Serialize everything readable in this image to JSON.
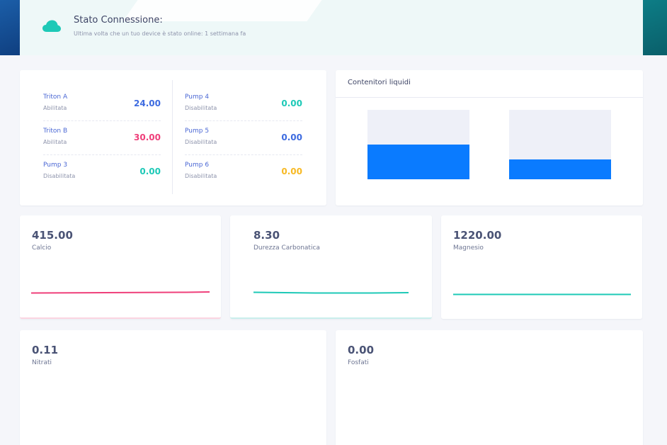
{
  "connection": {
    "title": "Stato Connessione:",
    "subtitle": "Ultima volta che un tuo device è stato online: 1 settimana fa",
    "icon": "cloud-icon",
    "icon_color": "#1ec9b7"
  },
  "pumps": [
    {
      "name": "Triton A",
      "status": "Abilitata",
      "value": "24.00",
      "color": "#3d6be0"
    },
    {
      "name": "Triton B",
      "status": "Abilitata",
      "value": "30.00",
      "color": "#ef3f7a"
    },
    {
      "name": "Pump 3",
      "status": "Disabilitata",
      "value": "0.00",
      "color": "#1ec9b7"
    },
    {
      "name": "Pump 4",
      "status": "Disabilitata",
      "value": "0.00",
      "color": "#1ec9b7"
    },
    {
      "name": "Pump 5",
      "status": "Disabilitata",
      "value": "0.00",
      "color": "#3d6be0"
    },
    {
      "name": "Pump 6",
      "status": "Disabilitata",
      "value": "0.00",
      "color": "#f7b924"
    }
  ],
  "liquids": {
    "title": "Contenitori liquidi",
    "fill_color": "#0a7bff",
    "tanks": [
      {
        "level_fraction": 0.5
      },
      {
        "level_fraction": 0.29
      }
    ]
  },
  "metrics": [
    {
      "value": "415.00",
      "label": "Calcio",
      "line_color": "#ef3f7a"
    },
    {
      "value": "8.30",
      "label": "Durezza Carbonatica",
      "line_color": "#1ec9b7"
    },
    {
      "value": "1220.00",
      "label": "Magnesio",
      "line_color": "#1ec9b7"
    }
  ],
  "bottom_metrics": [
    {
      "value": "0.11",
      "label": "Nitrati"
    },
    {
      "value": "0.00",
      "label": "Fosfati"
    }
  ]
}
